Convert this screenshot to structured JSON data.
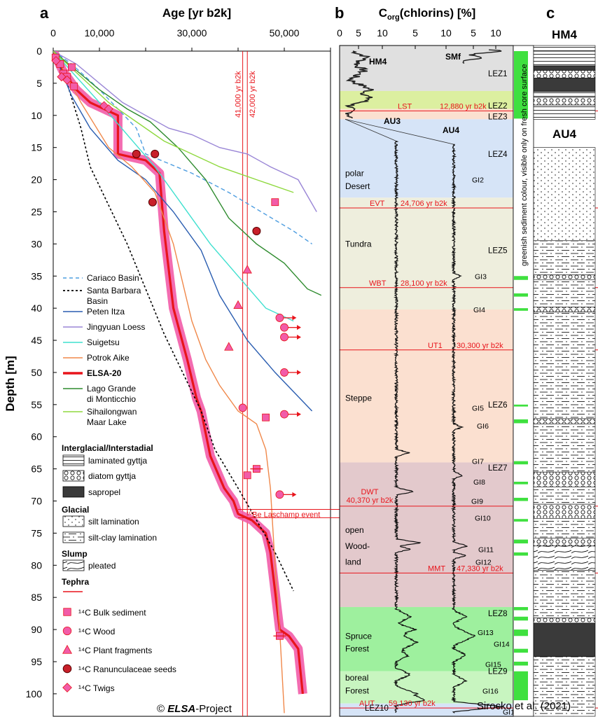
{
  "panel_a": {
    "letter": "a",
    "x_title": "Age [yr b2k]",
    "y_title": "Depth [m]",
    "x_ticks": [
      "0",
      "10,000",
      "30,000",
      "50,000"
    ],
    "y_ticks": [
      "0",
      "5",
      "10",
      "15",
      "20",
      "25",
      "30",
      "35",
      "40",
      "45",
      "50",
      "55",
      "60",
      "65",
      "70",
      "75",
      "80",
      "85",
      "90",
      "95",
      "100"
    ],
    "vline1_label": "41,000 yr b2k",
    "vline2_label": "42,000 yr b2k",
    "laschamp_label": "¹⁰Be Laschamp event",
    "copyright_prefix": "© ",
    "copyright_italic": "ELSA",
    "copyright_suffix": "-Project"
  },
  "panel_b": {
    "letter": "b",
    "title_prefix": "C",
    "title_sub": "org",
    "title_suffix": "(chlorins) [%]",
    "ticks": [
      "0",
      "5",
      "10",
      "5",
      "10",
      "5",
      "10"
    ],
    "cores": [
      "HM4",
      "SMf",
      "AU3",
      "AU4"
    ],
    "lez": [
      "LEZ1",
      "LEZ2",
      "LEZ3",
      "LEZ4",
      "LEZ5",
      "LEZ6",
      "LEZ7",
      "LEZ8",
      "LEZ9",
      "LEZ10"
    ],
    "zones": [
      "polar",
      "Desert",
      "Tundra",
      "Steppe",
      "open",
      "Wood-",
      "land",
      "Spruce",
      "Forest",
      "boreal",
      "Forest"
    ],
    "tephra": [
      {
        "name": "LST",
        "age": "12,880 yr b2k"
      },
      {
        "name": "EVT",
        "age": "24,706 yr b2k"
      },
      {
        "name": "WBT",
        "age": "28,100 yr b2k"
      },
      {
        "name": "UT1",
        "age": "30,300 yr b2k"
      },
      {
        "name": "DWT",
        "age": "40,370 yr b2k"
      },
      {
        "name": "MMT",
        "age": "47,330 yr b2k"
      },
      {
        "name": "AUT",
        "age": "59,130 yr b2k"
      }
    ],
    "gi": [
      "GI2",
      "GI3",
      "GI4",
      "GI5",
      "GI6",
      "GI7",
      "GI8",
      "GI9",
      "GI10",
      "GI11",
      "GI12",
      "GI13",
      "GI14",
      "GI15",
      "GI16",
      "GI17"
    ],
    "greenish_note": "greenish sediment colour, visible only on fresh core surface"
  },
  "panel_c": {
    "letter": "c",
    "core1": "HM4",
    "core2": "AU4"
  },
  "legend": {
    "records": [
      "Cariaco Basin",
      "Santa Barbara",
      "Basin",
      "Peten Itza",
      "Jingyuan Loess",
      "Suigetsu",
      "Potrok Aike",
      "ELSA-20",
      "Lago Grande",
      "di Monticchio",
      "Sihailongwan",
      "Maar Lake"
    ],
    "h_interglacial": "Interglacial/Interstadial",
    "laminated": "laminated gyttja",
    "diatom": "diatom gyttja",
    "sapropel": "sapropel",
    "h_glacial": "Glacial",
    "silt": "silt lamination",
    "siltclay": "silt-clay lamination",
    "h_slump": "Slump",
    "pleated": "pleated",
    "h_tephra": "Tephra",
    "c14": [
      "¹⁴C Bulk sediment",
      "¹⁴C Wood",
      "¹⁴C Plant fragments",
      "¹⁴C Ranunculaceae seeds",
      "¹⁴C Twigs"
    ]
  },
  "citation": "Sirocko et al. (2021)",
  "colors": {
    "red": "#e8141b",
    "pink": "#f25ca8",
    "cariaco": "#4d9de0",
    "peten": "#2a5db0",
    "jingyuan": "#9a86d6",
    "suigetsu": "#3fe0cf",
    "potrok": "#f0884a",
    "monticchio": "#2e8b2e",
    "sihailongwan": "#8fd93f",
    "lez_grey": "#e0e0e0",
    "lez_yellow": "#dcefa0",
    "lez_blue": "#d6e4f7",
    "lez_beige": "#eeeedd",
    "lez_peach": "#fbe0d0",
    "lez_mauve": "#e3c9cc",
    "lez_green": "#9ef09e",
    "lez_lightgreen": "#c8f5c0"
  },
  "chart_data": [
    {
      "type": "line",
      "panel": "a",
      "title": "Age [yr b2k]",
      "xlabel": "Age [yr b2k]",
      "ylabel": "Depth [m]",
      "xlim": [
        0,
        60000
      ],
      "ylim": [
        103,
        0
      ],
      "series": [
        {
          "name": "ELSA-20",
          "points": [
            [
              0,
              0
            ],
            [
              2000,
              3
            ],
            [
              5000,
              6
            ],
            [
              8000,
              8
            ],
            [
              14000,
              10
            ],
            [
              14000,
              16
            ],
            [
              20000,
              17
            ],
            [
              23000,
              19
            ],
            [
              24000,
              28
            ],
            [
              26000,
              40
            ],
            [
              29000,
              48
            ],
            [
              31000,
              54
            ],
            [
              32000,
              56
            ],
            [
              34000,
              63
            ],
            [
              37000,
              68
            ],
            [
              39000,
              70
            ],
            [
              40000,
              72
            ],
            [
              43000,
              73
            ],
            [
              46000,
              75
            ],
            [
              47000,
              78
            ],
            [
              49000,
              90
            ],
            [
              51000,
              91
            ],
            [
              53000,
              93
            ],
            [
              54000,
              100
            ]
          ]
        },
        {
          "name": "Cariaco Basin",
          "points": [
            [
              0,
              0
            ],
            [
              4000,
              2
            ],
            [
              10000,
              6
            ],
            [
              14000,
              9
            ],
            [
              18000,
              12
            ],
            [
              20000,
              16
            ],
            [
              30000,
              19
            ],
            [
              38000,
              22
            ],
            [
              45000,
              25
            ],
            [
              52000,
              28
            ],
            [
              56000,
              30
            ]
          ]
        },
        {
          "name": "Santa Barbara Basin",
          "points": [
            [
              0,
              0
            ],
            [
              3000,
              5
            ],
            [
              6000,
              12
            ],
            [
              8000,
              18
            ],
            [
              12000,
              24
            ],
            [
              16000,
              30
            ],
            [
              20000,
              37
            ],
            [
              24000,
              44
            ],
            [
              28000,
              50
            ],
            [
              32000,
              56
            ],
            [
              35000,
              62
            ],
            [
              40000,
              68
            ],
            [
              44000,
              73
            ],
            [
              48000,
              78
            ],
            [
              52000,
              84
            ]
          ]
        },
        {
          "name": "Peten Itza",
          "points": [
            [
              0,
              0
            ],
            [
              4000,
              7
            ],
            [
              8000,
              12
            ],
            [
              14000,
              17
            ],
            [
              20000,
              20
            ],
            [
              26000,
              25
            ],
            [
              32000,
              31
            ],
            [
              36000,
              38
            ],
            [
              42000,
              45
            ],
            [
              48000,
              50
            ],
            [
              56000,
              56
            ]
          ]
        },
        {
          "name": "Jingyuan Loess",
          "points": [
            [
              0,
              0
            ],
            [
              5000,
              2
            ],
            [
              10000,
              5
            ],
            [
              15000,
              8
            ],
            [
              20000,
              10
            ],
            [
              25000,
              12
            ],
            [
              30000,
              13
            ],
            [
              36000,
              15
            ],
            [
              42000,
              16
            ],
            [
              47000,
              18
            ],
            [
              53000,
              20
            ],
            [
              57000,
              25
            ]
          ]
        },
        {
          "name": "Suigetsu",
          "points": [
            [
              0,
              0
            ],
            [
              5000,
              4
            ],
            [
              10000,
              8
            ],
            [
              16000,
              13
            ],
            [
              22000,
              18
            ],
            [
              28000,
              24
            ],
            [
              34000,
              30
            ],
            [
              40000,
              35
            ],
            [
              46000,
              40
            ],
            [
              52000,
              42
            ]
          ]
        },
        {
          "name": "Potrok Aike",
          "points": [
            [
              0,
              0
            ],
            [
              6000,
              8
            ],
            [
              12000,
              15
            ],
            [
              17000,
              18
            ],
            [
              22000,
              22
            ],
            [
              26000,
              30
            ],
            [
              28000,
              36
            ],
            [
              30000,
              42
            ],
            [
              33000,
              48
            ],
            [
              36000,
              52
            ],
            [
              40000,
              56
            ],
            [
              44000,
              58
            ],
            [
              46000,
              62
            ],
            [
              47000,
              68
            ],
            [
              48000,
              80
            ],
            [
              49000,
              90
            ],
            [
              50000,
              103
            ]
          ]
        },
        {
          "name": "Lago Grande di Monticchio",
          "points": [
            [
              0,
              0
            ],
            [
              5000,
              3
            ],
            [
              10000,
              6
            ],
            [
              16000,
              9
            ],
            [
              21000,
              11
            ],
            [
              27000,
              15
            ],
            [
              33000,
              20
            ],
            [
              38000,
              26
            ],
            [
              44000,
              30
            ],
            [
              50000,
              33
            ],
            [
              55000,
              37
            ],
            [
              58000,
              38
            ]
          ]
        },
        {
          "name": "Sihailongwan Maar Lake",
          "points": [
            [
              0,
              0
            ],
            [
              6000,
              4
            ],
            [
              12000,
              8
            ],
            [
              18000,
              11
            ],
            [
              24000,
              14
            ],
            [
              30000,
              16
            ],
            [
              36000,
              18
            ],
            [
              44000,
              20
            ],
            [
              52000,
              22
            ]
          ]
        }
      ],
      "markers": [
        {
          "type": "Bulk sediment",
          "points": [
            [
              500,
              1
            ],
            [
              1500,
              2
            ],
            [
              2200,
              3.5
            ],
            [
              3000,
              4
            ],
            [
              4000,
              2.5
            ],
            [
              4500,
              5.5
            ],
            [
              48000,
              23.5
            ],
            [
              46000,
              57
            ],
            [
              42000,
              66
            ],
            [
              44000,
              65
            ],
            [
              49000,
              91
            ]
          ]
        },
        {
          "type": "Wood",
          "points": [
            [
              41000,
              55.5
            ],
            [
              49000,
              41.5
            ],
            [
              50000,
              43
            ],
            [
              50000,
              44.5
            ],
            [
              50000,
              50
            ],
            [
              50000,
              56.5
            ],
            [
              49000,
              69
            ]
          ]
        },
        {
          "type": "Plant fragments",
          "points": [
            [
              42000,
              34
            ],
            [
              40000,
              39.5
            ],
            [
              38000,
              46
            ]
          ]
        },
        {
          "type": "Ranunculaceae seeds",
          "points": [
            [
              18000,
              16
            ],
            [
              22000,
              16
            ],
            [
              21500,
              23.5
            ],
            [
              44000,
              28
            ]
          ]
        },
        {
          "type": "Twigs",
          "points": [
            [
              600,
              1.5
            ],
            [
              1800,
              4
            ],
            [
              3000,
              4.5
            ],
            [
              11000,
              8.5
            ],
            [
              12000,
              9
            ]
          ]
        }
      ]
    },
    {
      "type": "line",
      "panel": "b",
      "title": "Corg(chlorins) [%]",
      "xlabel": "Corg(chlorins) [%]",
      "ylabel": "Depth [m]",
      "ylim": [
        103,
        0
      ],
      "series": [
        {
          "name": "HM4"
        },
        {
          "name": "SMf"
        },
        {
          "name": "AU3"
        },
        {
          "name": "AU4"
        }
      ]
    }
  ]
}
